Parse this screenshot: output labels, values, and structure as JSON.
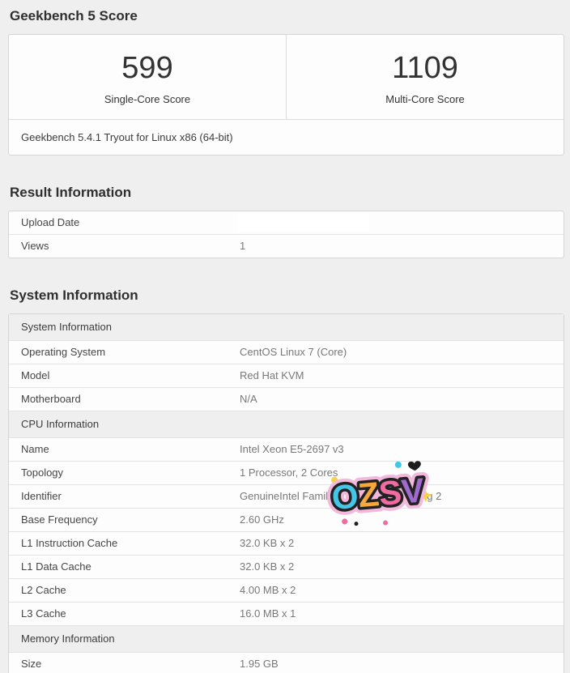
{
  "page": {
    "title": "Geekbench 5 Score"
  },
  "score_card": {
    "scores": [
      {
        "value": "599",
        "label": "Single-Core Score"
      },
      {
        "value": "1109",
        "label": "Multi-Core Score"
      }
    ],
    "description": "Geekbench 5.4.1 Tryout for Linux x86 (64-bit)"
  },
  "result_information": {
    "heading": "Result Information",
    "rows": [
      {
        "label": "Upload Date",
        "value": "",
        "redacted": true
      },
      {
        "label": "Views",
        "value": "1"
      }
    ]
  },
  "system_information": {
    "heading": "System Information",
    "sections": [
      {
        "header": "System Information",
        "rows": [
          {
            "label": "Operating System",
            "value": "CentOS Linux 7 (Core)"
          },
          {
            "label": "Model",
            "value": "Red Hat KVM"
          },
          {
            "label": "Motherboard",
            "value": "N/A"
          }
        ]
      },
      {
        "header": "CPU Information",
        "rows": [
          {
            "label": "Name",
            "value": "Intel Xeon E5-2697 v3"
          },
          {
            "label": "Topology",
            "value": "1 Processor, 2 Cores"
          },
          {
            "label": "Identifier",
            "value": "GenuineIntel Family 6 Model 63 Stepping 2"
          },
          {
            "label": "Base Frequency",
            "value": "2.60 GHz"
          },
          {
            "label": "L1 Instruction Cache",
            "value": "32.0 KB x 2"
          },
          {
            "label": "L1 Data Cache",
            "value": "32.0 KB x 2"
          },
          {
            "label": "L2 Cache",
            "value": "4.00 MB x 2"
          },
          {
            "label": "L3 Cache",
            "value": "16.0 MB x 1"
          }
        ]
      },
      {
        "header": "Memory Information",
        "rows": [
          {
            "label": "Size",
            "value": "1.95 GB"
          }
        ]
      }
    ]
  },
  "watermark": {
    "text": "OZSV",
    "letters": [
      {
        "char": "O",
        "color": "#45c6e6"
      },
      {
        "char": "Z",
        "color": "#f5a83c"
      },
      {
        "char": "S",
        "color": "#ef6ba2"
      },
      {
        "char": "V",
        "color": "#a06ad0"
      }
    ],
    "outline_color": "#222222",
    "glow_color": "#f2b9dc"
  },
  "colors": {
    "page_background": "#efefef",
    "card_background": "#fdfdfd",
    "card_border": "#d5d5d5",
    "section_header_background": "#efefef",
    "label_text": "#454545",
    "value_text": "#787878",
    "heading_text": "#2f2f2f"
  }
}
